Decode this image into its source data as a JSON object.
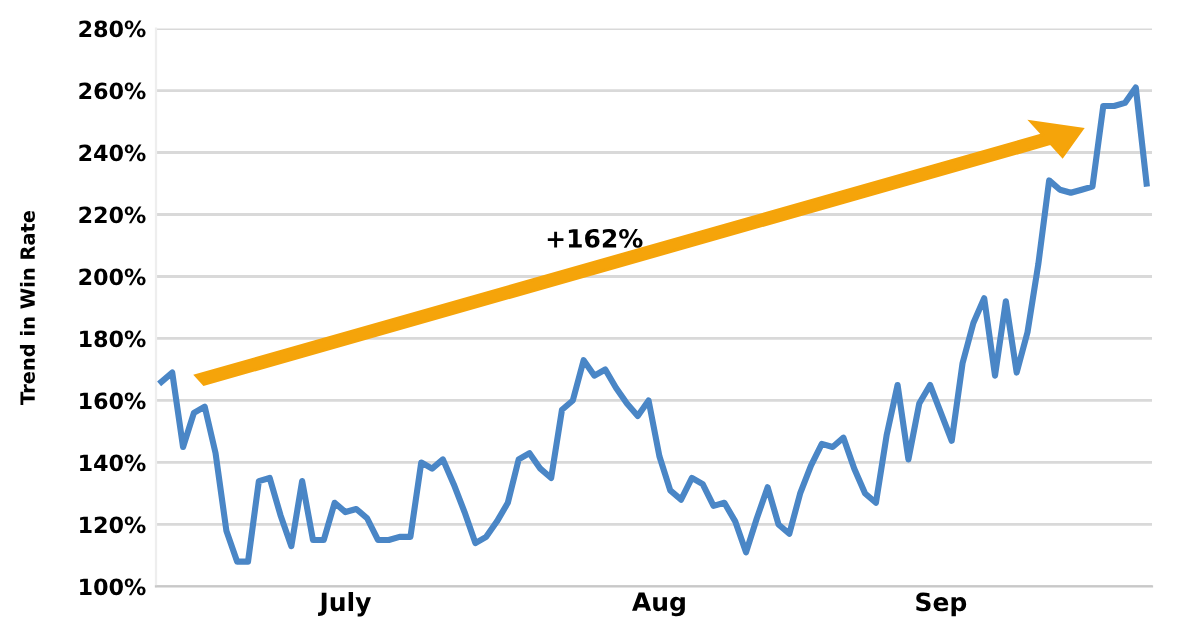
{
  "chart_data": {
    "type": "line",
    "ylabel": "Trend in Win Rate",
    "categories": [
      null,
      null,
      null,
      null,
      null,
      null,
      null,
      null,
      null,
      null,
      null,
      null,
      null,
      null,
      null,
      null,
      null,
      "July",
      null,
      null,
      null,
      null,
      null,
      null,
      null,
      null,
      null,
      null,
      null,
      null,
      null,
      null,
      null,
      null,
      null,
      null,
      null,
      null,
      null,
      null,
      null,
      null,
      null,
      null,
      null,
      null,
      "Aug",
      null,
      null,
      null,
      null,
      null,
      null,
      null,
      null,
      null,
      null,
      null,
      null,
      null,
      null,
      null,
      null,
      null,
      null,
      null,
      null,
      null,
      null,
      null,
      null,
      null,
      "Sep",
      null,
      null,
      null,
      null,
      null,
      null,
      null,
      null,
      null,
      null,
      null,
      null,
      null,
      null,
      null,
      null,
      null,
      null,
      null
    ],
    "series": [
      {
        "color": "#4a86c6",
        "values": [
          166,
          169,
          145,
          156,
          158,
          143,
          118,
          108,
          108,
          134,
          135,
          123,
          113,
          134,
          115,
          115,
          127,
          124,
          125,
          122,
          115,
          115,
          116,
          116,
          140,
          138,
          141,
          133,
          124,
          114,
          116,
          121,
          127,
          141,
          143,
          138,
          135,
          157,
          160,
          173,
          168,
          170,
          164,
          159,
          155,
          160,
          142,
          131,
          128,
          135,
          133,
          126,
          127,
          121,
          111,
          122,
          132,
          120,
          117,
          130,
          139,
          146,
          145,
          148,
          138,
          130,
          127,
          149,
          165,
          141,
          159,
          165,
          156,
          147,
          172,
          185,
          193,
          168,
          192,
          169,
          182,
          204,
          231,
          228,
          227,
          228,
          229,
          255,
          255,
          256,
          261,
          230
        ]
      }
    ],
    "ylim": [
      100,
      280
    ],
    "yticks": [
      {
        "value": 100,
        "label": "100%"
      },
      {
        "value": 120,
        "label": "120%"
      },
      {
        "value": 140,
        "label": "140%"
      },
      {
        "value": 160,
        "label": "160%"
      },
      {
        "value": 180,
        "label": "180%"
      },
      {
        "value": 200,
        "label": "200%"
      },
      {
        "value": 220,
        "label": "220%"
      },
      {
        "value": 240,
        "label": "240%"
      },
      {
        "value": 260,
        "label": "260%"
      },
      {
        "value": 280,
        "label": "280%"
      }
    ],
    "grid": "y",
    "marker": "none",
    "line_style": "solid",
    "annotations": [
      "+162%"
    ]
  }
}
